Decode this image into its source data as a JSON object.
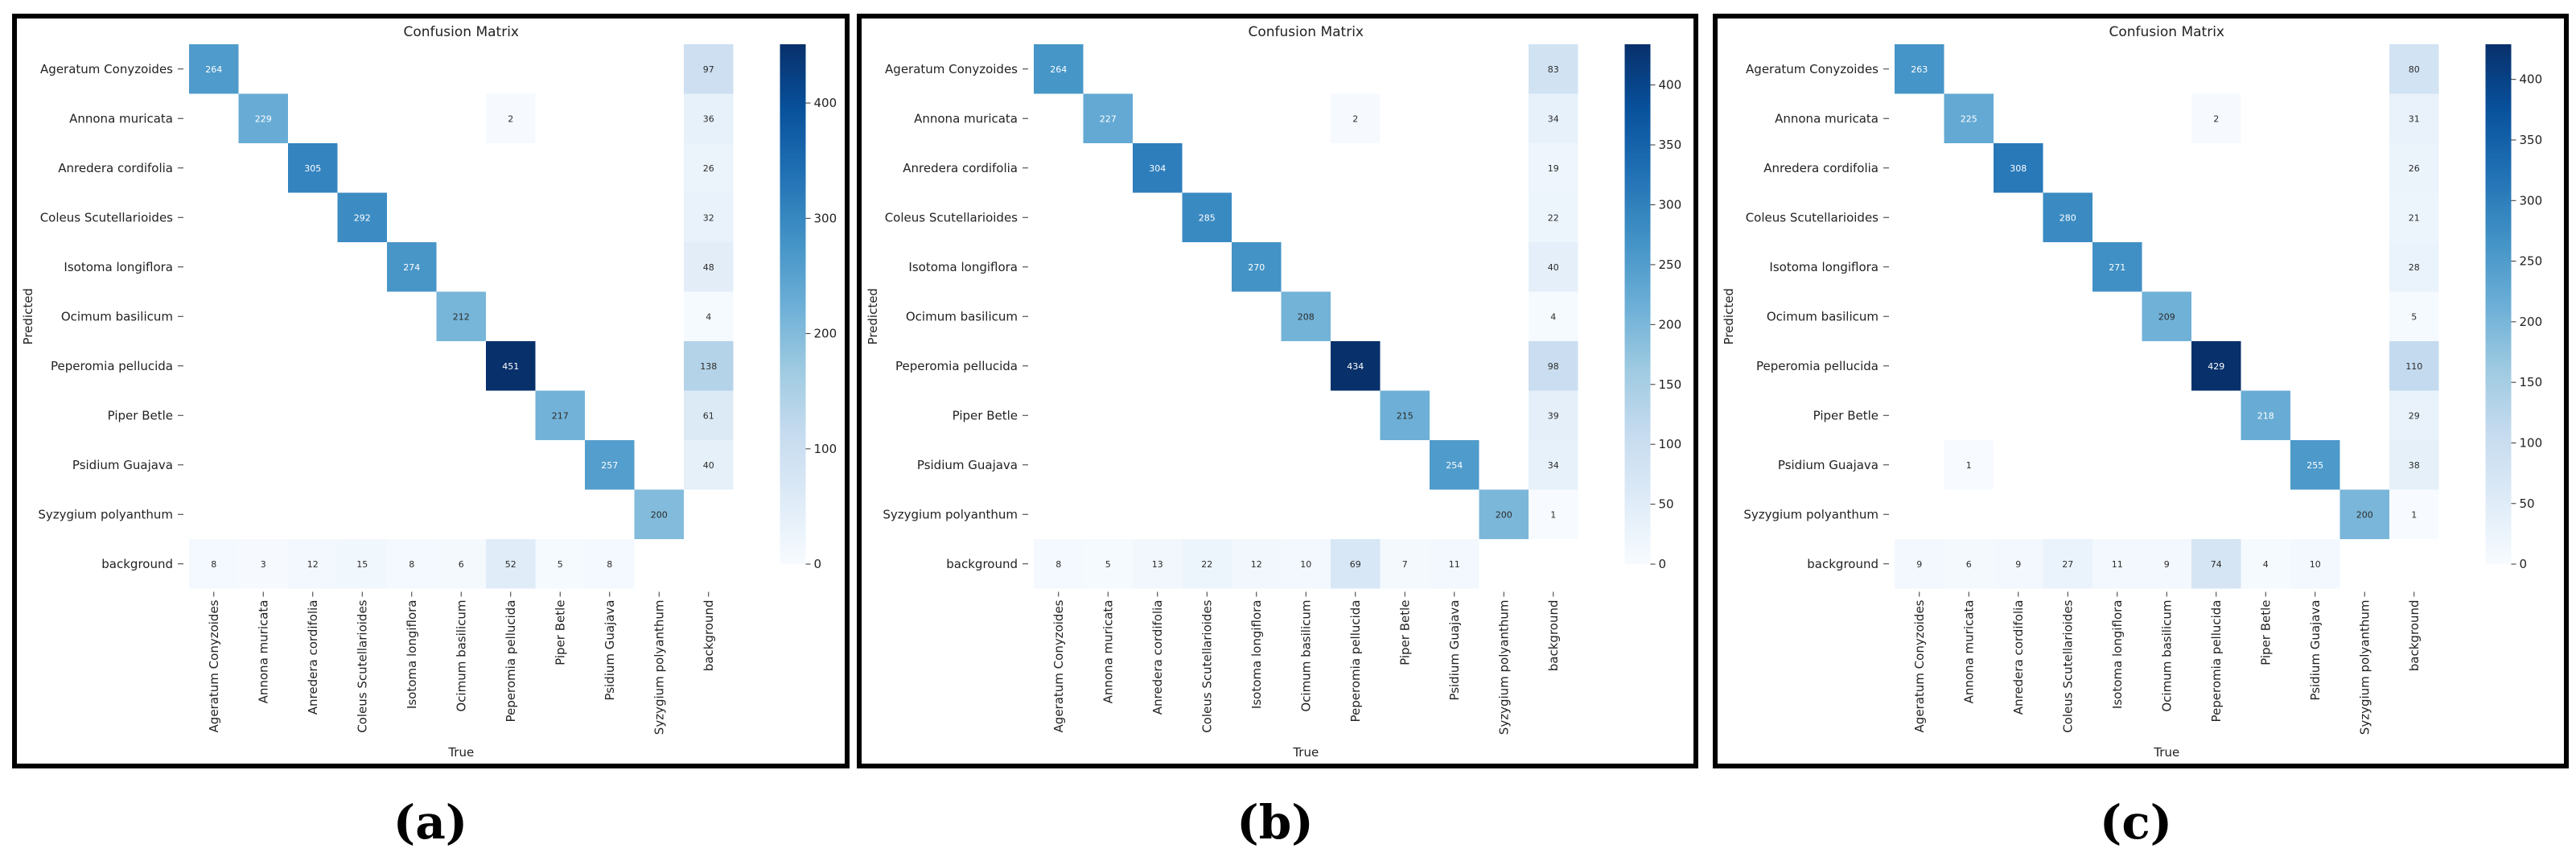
{
  "labels": [
    "Ageratum Conyzoides",
    "Annona muricata",
    "Anredera cordifolia",
    "Coleus Scutellarioides",
    "Isotoma longiflora",
    "Ocimum basilicum",
    "Peperomia pellucida",
    "Piper Betle",
    "Psidium Guajava",
    "Syzygium polyanthum",
    "background"
  ],
  "chart_data": [
    {
      "type": "heatmap",
      "title": "Confusion Matrix",
      "xlabel": "True",
      "ylabel": "Predicted",
      "caption": "(a)",
      "vmax": 451,
      "colorbar_ticks": [
        0,
        100,
        200,
        300,
        400
      ],
      "matrix": [
        [
          264,
          null,
          null,
          null,
          null,
          null,
          null,
          null,
          null,
          null,
          97
        ],
        [
          null,
          229,
          null,
          null,
          null,
          null,
          2,
          null,
          null,
          null,
          36
        ],
        [
          null,
          null,
          305,
          null,
          null,
          null,
          null,
          null,
          null,
          null,
          26
        ],
        [
          null,
          null,
          null,
          292,
          null,
          null,
          null,
          null,
          null,
          null,
          32
        ],
        [
          null,
          null,
          null,
          null,
          274,
          null,
          null,
          null,
          null,
          null,
          48
        ],
        [
          null,
          null,
          null,
          null,
          null,
          212,
          null,
          null,
          null,
          null,
          4
        ],
        [
          null,
          null,
          null,
          null,
          null,
          null,
          451,
          null,
          null,
          null,
          138
        ],
        [
          null,
          null,
          null,
          null,
          null,
          null,
          null,
          217,
          null,
          null,
          61
        ],
        [
          null,
          null,
          null,
          null,
          null,
          null,
          null,
          null,
          257,
          null,
          40
        ],
        [
          null,
          null,
          null,
          null,
          null,
          null,
          null,
          null,
          null,
          200,
          null
        ],
        [
          8,
          3,
          12,
          15,
          8,
          6,
          52,
          5,
          8,
          null,
          null
        ]
      ]
    },
    {
      "type": "heatmap",
      "title": "Confusion Matrix",
      "xlabel": "True",
      "ylabel": "Predicted",
      "caption": "(b)",
      "vmax": 434,
      "colorbar_ticks": [
        0,
        50,
        100,
        150,
        200,
        250,
        300,
        350,
        400
      ],
      "matrix": [
        [
          264,
          null,
          null,
          null,
          null,
          null,
          null,
          null,
          null,
          null,
          83
        ],
        [
          null,
          227,
          null,
          null,
          null,
          null,
          2,
          null,
          null,
          null,
          34
        ],
        [
          null,
          null,
          304,
          null,
          null,
          null,
          null,
          null,
          null,
          null,
          19
        ],
        [
          null,
          null,
          null,
          285,
          null,
          null,
          null,
          null,
          null,
          null,
          22
        ],
        [
          null,
          null,
          null,
          null,
          270,
          null,
          null,
          null,
          null,
          null,
          40
        ],
        [
          null,
          null,
          null,
          null,
          null,
          208,
          null,
          null,
          null,
          null,
          4
        ],
        [
          null,
          null,
          null,
          null,
          null,
          null,
          434,
          null,
          null,
          null,
          98
        ],
        [
          null,
          null,
          null,
          null,
          null,
          null,
          null,
          215,
          null,
          null,
          39
        ],
        [
          null,
          null,
          null,
          null,
          null,
          null,
          null,
          null,
          254,
          null,
          34
        ],
        [
          null,
          null,
          null,
          null,
          null,
          null,
          null,
          null,
          null,
          200,
          1
        ],
        [
          8,
          5,
          13,
          22,
          12,
          10,
          69,
          7,
          11,
          null,
          null
        ]
      ]
    },
    {
      "type": "heatmap",
      "title": "Confusion Matrix",
      "xlabel": "True",
      "ylabel": "Predicted",
      "caption": "(c)",
      "vmax": 429,
      "colorbar_ticks": [
        0,
        50,
        100,
        150,
        200,
        250,
        300,
        350,
        400
      ],
      "matrix": [
        [
          263,
          null,
          null,
          null,
          null,
          null,
          null,
          null,
          null,
          null,
          80
        ],
        [
          null,
          225,
          null,
          null,
          null,
          null,
          2,
          null,
          null,
          null,
          31
        ],
        [
          null,
          null,
          308,
          null,
          null,
          null,
          null,
          null,
          null,
          null,
          26
        ],
        [
          null,
          null,
          null,
          280,
          null,
          null,
          null,
          null,
          null,
          null,
          21
        ],
        [
          null,
          null,
          null,
          null,
          271,
          null,
          null,
          null,
          null,
          null,
          28
        ],
        [
          null,
          null,
          null,
          null,
          null,
          209,
          null,
          null,
          null,
          null,
          5
        ],
        [
          null,
          null,
          null,
          null,
          null,
          null,
          429,
          null,
          null,
          null,
          110
        ],
        [
          null,
          null,
          null,
          null,
          null,
          null,
          null,
          218,
          null,
          null,
          29
        ],
        [
          null,
          1,
          null,
          null,
          null,
          null,
          null,
          null,
          255,
          null,
          38
        ],
        [
          null,
          null,
          null,
          null,
          null,
          null,
          null,
          null,
          null,
          200,
          1
        ],
        [
          9,
          6,
          9,
          27,
          11,
          9,
          74,
          4,
          10,
          null,
          null
        ]
      ]
    }
  ]
}
